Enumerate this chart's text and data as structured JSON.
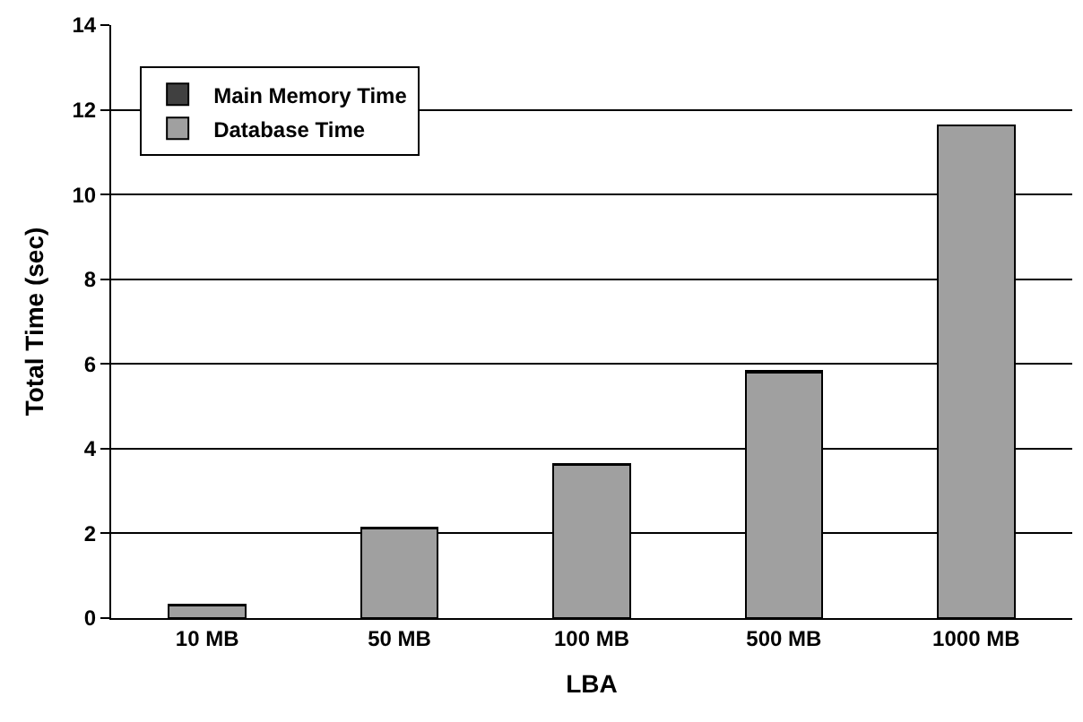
{
  "chart_data": {
    "type": "bar",
    "stacked": true,
    "xlabel": "LBA",
    "ylabel": "Total Time (sec)",
    "categories": [
      "10 MB",
      "50 MB",
      "100 MB",
      "500 MB",
      "1000 MB"
    ],
    "series": [
      {
        "name": "Database Time",
        "color": "#a0a0a0",
        "values": [
          0.3,
          2.12,
          3.62,
          5.8,
          11.63
        ]
      },
      {
        "name": "Main Memory Time",
        "color": "#404040",
        "values": [
          0.01,
          0.01,
          0.01,
          0.04,
          0.01
        ]
      }
    ],
    "ylim": [
      0,
      14
    ],
    "yticks": [
      0,
      2,
      4,
      6,
      8,
      10,
      12,
      14
    ],
    "grid": "y",
    "legend": "top left"
  }
}
